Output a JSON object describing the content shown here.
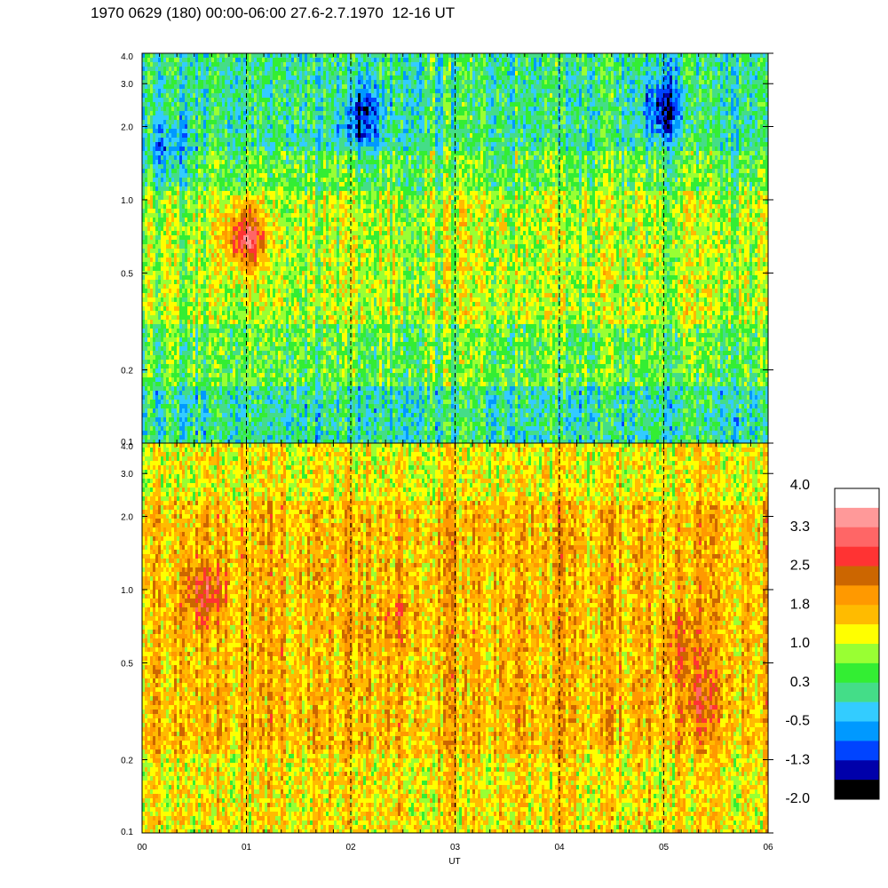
{
  "title": "1970 0629 (180) 00:00-06:00 27.6-2.7.1970  12-16 UT",
  "chart_data": {
    "type": "heatmap",
    "title": "1970 0629 (180) 00:00-06:00 27.6-2.7.1970  12-16 UT",
    "xlabel": "UT",
    "x_tick_labels": [
      "00",
      "01",
      "02",
      "03",
      "04",
      "05",
      "06"
    ],
    "xlim": [
      0,
      6
    ],
    "dashed_vertical_lines_at_hours": [
      1,
      2,
      3,
      4,
      5
    ],
    "panels": [
      {
        "name": "upper",
        "y_scale": "log",
        "ylim": [
          0.1,
          4.0
        ],
        "y_tick_labels": [
          "0.1",
          "0.2",
          "0.5",
          "1.0",
          "2.0",
          "3.0",
          "4.0"
        ],
        "y_ticks": [
          0.1,
          0.2,
          0.5,
          1.0,
          2.0,
          3.0,
          4.0
        ],
        "base_level": 0.5,
        "features": [
          {
            "x": 1.0,
            "y": 0.7,
            "level": 2.6,
            "desc": "hotspot"
          },
          {
            "x": 2.1,
            "y": 2.2,
            "level": -1.0
          },
          {
            "x": 5.0,
            "y": 2.4,
            "level": -1.0
          },
          {
            "x": 0.25,
            "y": 1.5,
            "level": -0.5
          }
        ]
      },
      {
        "name": "lower",
        "y_scale": "log",
        "ylim": [
          0.1,
          4.0
        ],
        "y_tick_labels": [
          "0.1",
          "0.2",
          "0.5",
          "1.0",
          "2.0",
          "3.0",
          "4.0"
        ],
        "y_ticks": [
          0.1,
          0.2,
          0.5,
          1.0,
          2.0,
          3.0,
          4.0
        ],
        "base_level": 1.6,
        "features": [
          {
            "x": 0.6,
            "y": 0.95,
            "level": 2.6
          },
          {
            "x": 2.45,
            "y": 0.75,
            "level": 2.1
          },
          {
            "x": 5.15,
            "y": 0.6,
            "level": 2.2
          },
          {
            "x": 5.35,
            "y": 0.35,
            "level": 2.4
          }
        ]
      }
    ],
    "colorbar": {
      "labels": [
        "4.0",
        "3.3",
        "2.5",
        "1.8",
        "1.0",
        "0.3",
        "-0.5",
        "-1.3",
        "-2.0"
      ],
      "range": [
        -2.0,
        4.0
      ],
      "colors": [
        "#ffffff",
        "#ff9999",
        "#ff6666",
        "#ff3333",
        "#cc6600",
        "#ff9900",
        "#ffbb00",
        "#ffff00",
        "#99ff33",
        "#33ee33",
        "#44dd88",
        "#33ccff",
        "#0099ff",
        "#0044ff",
        "#0000aa",
        "#000000"
      ]
    }
  }
}
